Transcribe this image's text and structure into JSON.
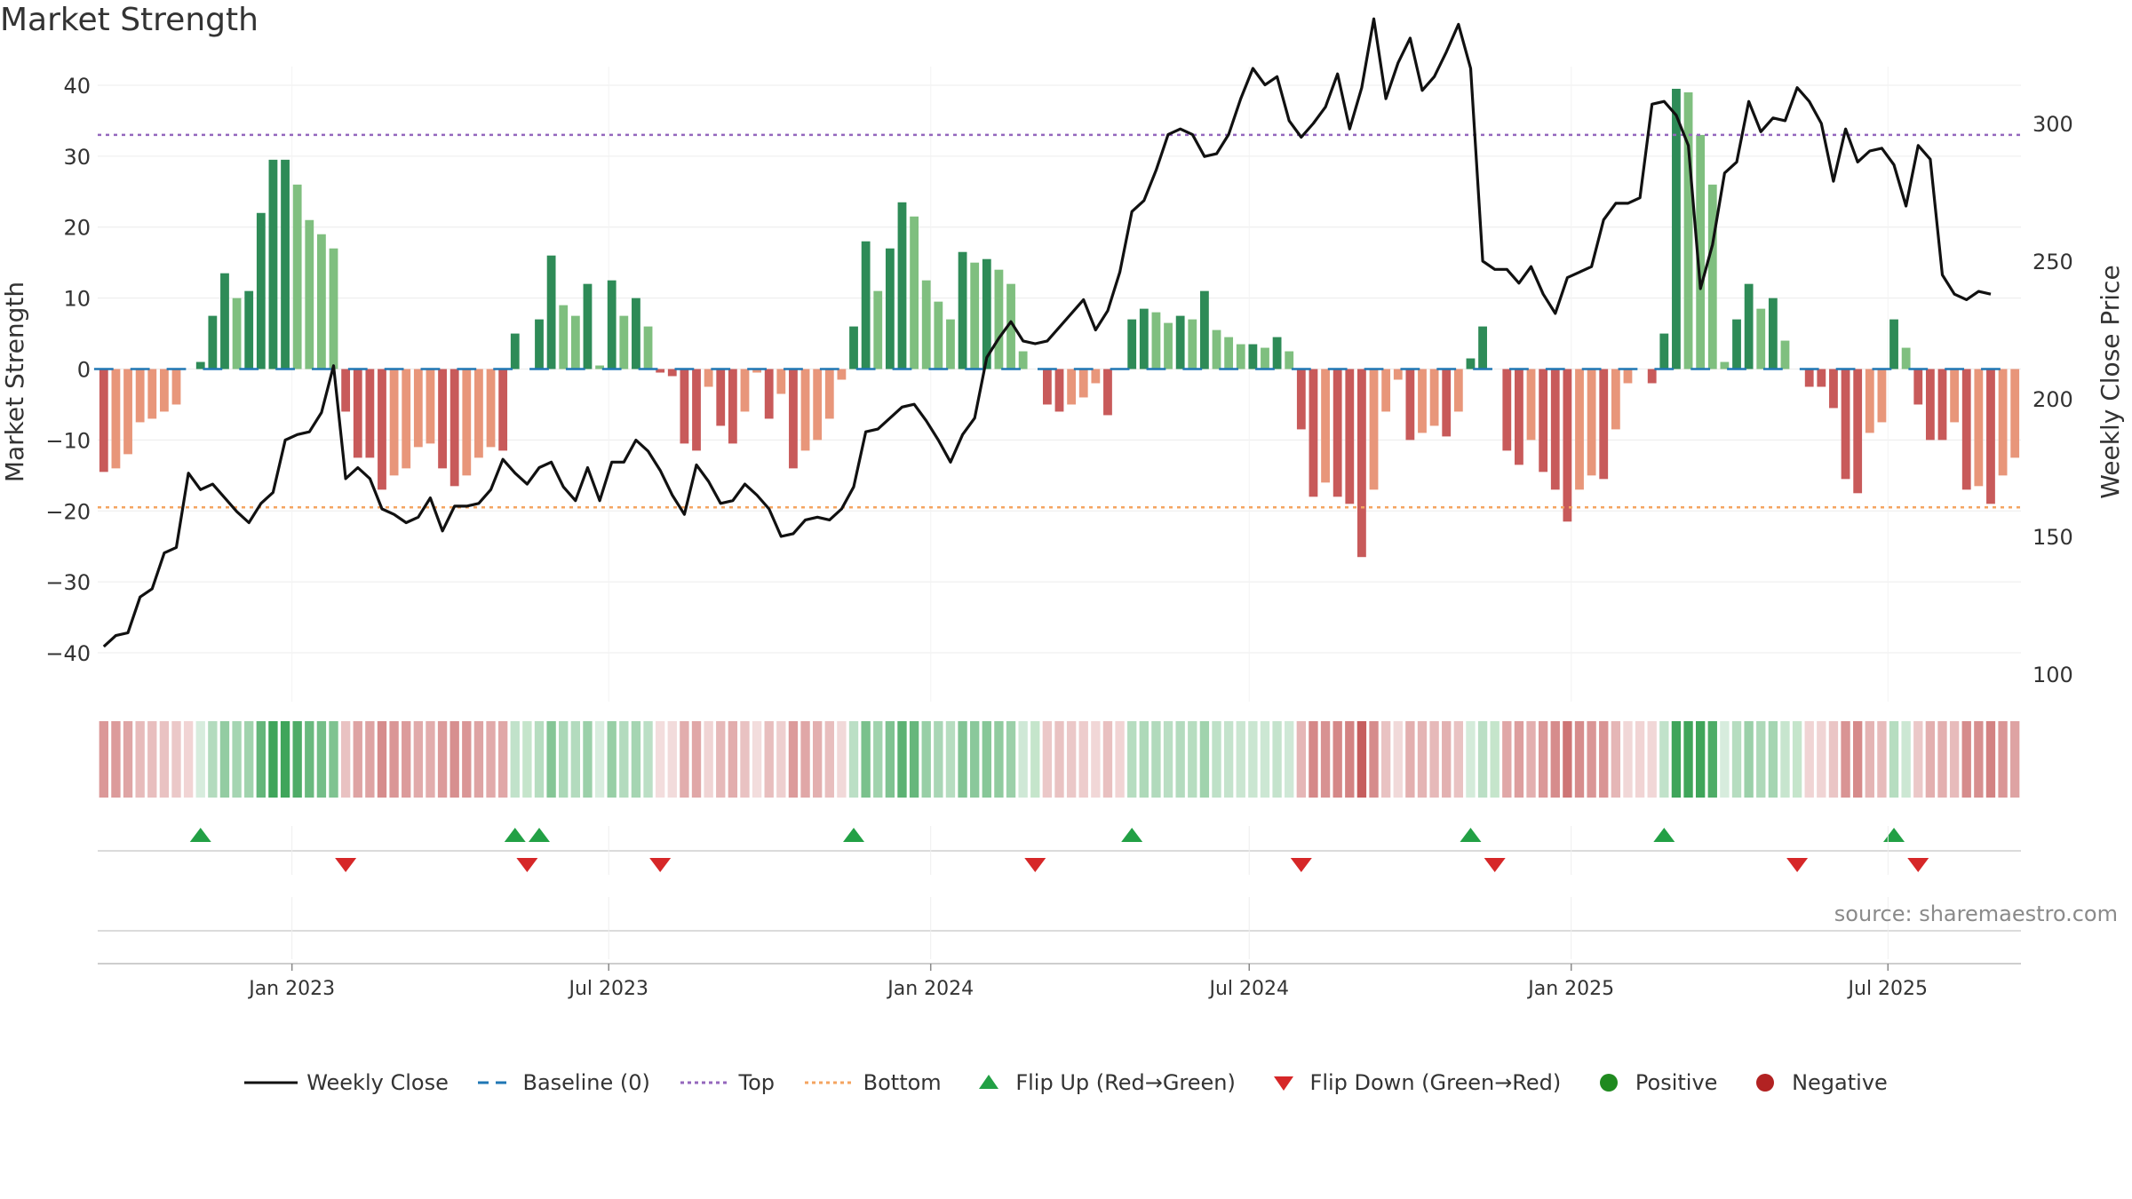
{
  "title": "Market Strength",
  "source": "source: sharemaestro.com",
  "legend": [
    {
      "key": "close",
      "label": "Weekly Close"
    },
    {
      "key": "baseline",
      "label": "Baseline (0)"
    },
    {
      "key": "top",
      "label": "Top"
    },
    {
      "key": "bottom",
      "label": "Bottom"
    },
    {
      "key": "flipup",
      "label": "Flip Up (Red→Green)"
    },
    {
      "key": "flipdown",
      "label": "Flip Down (Green→Red)"
    },
    {
      "key": "positive",
      "label": "Positive"
    },
    {
      "key": "negative",
      "label": "Negative"
    }
  ],
  "colors": {
    "pos_dark": "#2e8b57",
    "pos_light": "#7fbf7f",
    "neg_dark": "#c85a5a",
    "neg_light": "#e8967a",
    "line": "#111111",
    "baseline": "#1f77b4",
    "top": "#9467bd",
    "bottom": "#f4a460",
    "flip_up": "#22a045",
    "flip_down": "#d62728",
    "positive_dot": "#1f8a1f",
    "negative_dot": "#b22222"
  },
  "chart_data": {
    "type": "bar",
    "title": "Market Strength",
    "ylabel": "Market Strength",
    "y2label": "Weekly Close Price",
    "ylim": [
      -45,
      42
    ],
    "y2lim": [
      90,
      320
    ],
    "yticks": [
      40,
      30,
      20,
      10,
      0,
      -10,
      -20,
      -30,
      -40
    ],
    "y2ticks": [
      300,
      250,
      200,
      150,
      100
    ],
    "top_level": 33,
    "bottom_level": -19.5,
    "date_range": [
      "2022-09-12",
      "2025-09-15"
    ],
    "xtick_labels": [
      "Jan 2023",
      "Jul 2023",
      "Jan 2024",
      "Jul 2024",
      "Jan 2025",
      "Jul 2025"
    ],
    "xtick_dates": [
      "2023-01-01",
      "2023-07-01",
      "2024-01-01",
      "2024-07-01",
      "2025-01-01",
      "2025-07-01"
    ],
    "strength": [
      -14.5,
      -14,
      -12,
      -7.5,
      -7,
      -6,
      -5,
      0,
      1,
      7.5,
      13.5,
      10,
      11,
      22,
      29.5,
      29.5,
      26,
      21,
      19,
      17,
      -6,
      -12.5,
      -12.5,
      -17,
      -15,
      -14,
      -11,
      -10.5,
      -14,
      -16.5,
      -15,
      -12.5,
      -11,
      -11.5,
      5,
      0,
      7,
      16,
      9,
      7.5,
      12,
      0.5,
      12.5,
      7.5,
      10,
      6,
      -0.5,
      -1,
      -10.5,
      -11.5,
      -2.5,
      -8,
      -10.5,
      -6,
      -0.5,
      -7,
      -3.5,
      -14,
      -11.5,
      -10,
      -7,
      -1.5,
      6,
      18,
      11,
      17,
      23.5,
      21.5,
      12.5,
      9.5,
      7,
      16.5,
      15,
      15.5,
      14,
      12,
      2.5,
      0,
      -5,
      -6,
      -5,
      -4,
      -2,
      -6.5,
      0,
      7,
      8.5,
      8,
      6.5,
      7.5,
      7,
      11,
      5.5,
      4.5,
      3.5,
      3.5,
      3,
      4.5,
      2.5,
      -8.5,
      -18,
      -16,
      -18,
      -19,
      -26.5,
      -17,
      -6,
      -1.5,
      -10,
      -9,
      -8,
      -9.5,
      -6,
      1.5,
      6,
      0,
      -11.5,
      -13.5,
      -10,
      -14.5,
      -17,
      -21.5,
      -17,
      -15,
      -15.5,
      -8.5,
      -2,
      0,
      -2,
      5,
      39.5,
      39,
      33,
      26,
      1,
      7,
      12,
      8.5,
      10,
      4,
      0,
      -2.5,
      -2.5,
      -5.5,
      -15.5,
      -17.5,
      -9,
      -7.5,
      7,
      3,
      -5,
      -10,
      -10,
      -7.5,
      -17,
      -16.5,
      -19,
      -15,
      -12.5
    ],
    "close": [
      110,
      114,
      115,
      128,
      131,
      144,
      146,
      173,
      167,
      169,
      164,
      159,
      155,
      162,
      166,
      185,
      187,
      188,
      195,
      212,
      171,
      175,
      171,
      160,
      158,
      155,
      157,
      164,
      152,
      161,
      161,
      162,
      167,
      178,
      173,
      169,
      175,
      177,
      168,
      163,
      175,
      163,
      177,
      177,
      185,
      181,
      174,
      165,
      158,
      176,
      170,
      162,
      163,
      169,
      165,
      160,
      150,
      151,
      156,
      157,
      156,
      160,
      168,
      188,
      189,
      193,
      197,
      198,
      192,
      185,
      177,
      187,
      193,
      215,
      222,
      228,
      221,
      220,
      221,
      226,
      231,
      236,
      225,
      232,
      246,
      268,
      272,
      283,
      296,
      298,
      296,
      288,
      289,
      296,
      309,
      320,
      314,
      317,
      301,
      295,
      300,
      306,
      318,
      298,
      313,
      338,
      309,
      322,
      331,
      312,
      317,
      326,
      336,
      320,
      250,
      247,
      247,
      242,
      248,
      238,
      231,
      244,
      246,
      248,
      265,
      271,
      271,
      273,
      307,
      308,
      303,
      292,
      240,
      256,
      282,
      286,
      308,
      297,
      302,
      301,
      313,
      308,
      300,
      279,
      298,
      286,
      290,
      291,
      285,
      270,
      292,
      287,
      245,
      238,
      236,
      239,
      238
    ]
  }
}
